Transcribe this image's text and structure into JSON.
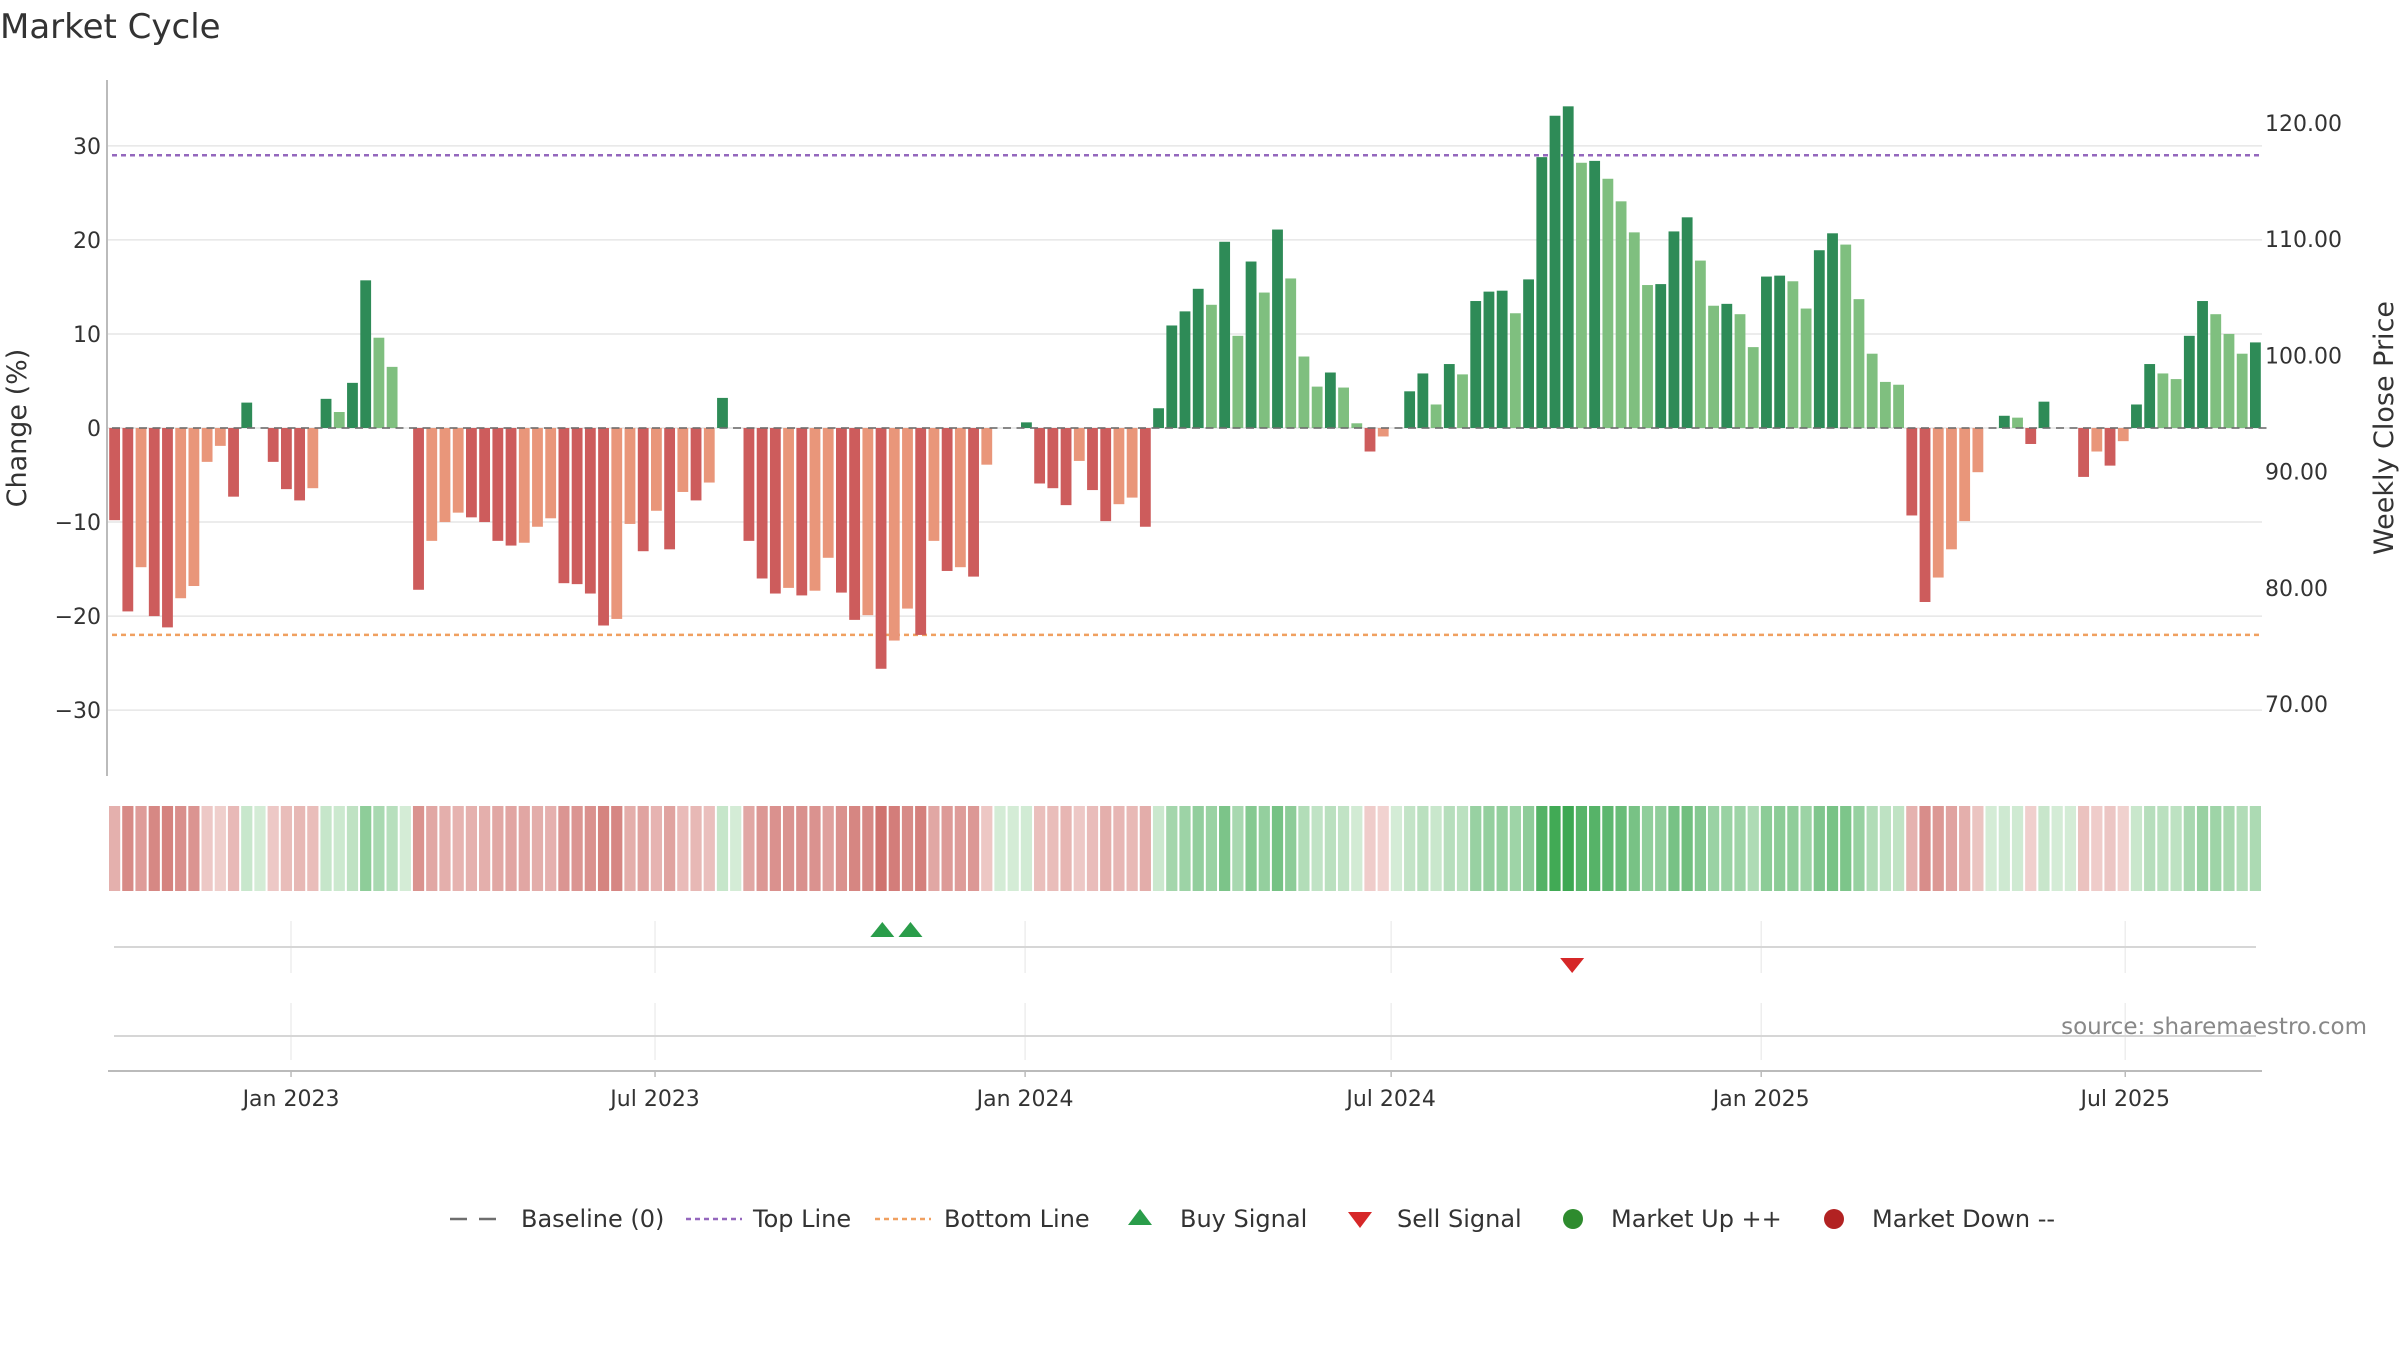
{
  "chart_data": {
    "type": "bar",
    "title": "Market Cycle",
    "ylabel": "Change (%)",
    "y2label": "Weekly Close Price",
    "ylim": [
      -37,
      37
    ],
    "yticks": [
      30,
      20,
      10,
      0,
      -10,
      -20,
      -30
    ],
    "ytick_labels": [
      "30",
      "20",
      "10",
      "0",
      "−10",
      "−20",
      "−30"
    ],
    "y2lim": [
      63.8,
      123.7
    ],
    "y2ticks": [
      120,
      110,
      100,
      90,
      80,
      70
    ],
    "y2tick_labels": [
      "120.00",
      "110.00",
      "100.00",
      "90.00",
      "80.00",
      "70.00"
    ],
    "x_start": "2022-10-02",
    "x_end": "2025-09-07",
    "xticks": [
      "2023-01-01",
      "2023-07-01",
      "2024-01-01",
      "2024-07-01",
      "2025-01-01",
      "2025-07-01"
    ],
    "xtick_labels": [
      "Jan 2023",
      "Jul 2023",
      "Jan 2024",
      "Jul 2024",
      "Jan 2025",
      "Jul 2025"
    ],
    "top_line": 29,
    "bottom_line": -22,
    "weeks_start": "2022-10-02",
    "values": [
      -9.8,
      -19.5,
      -14.8,
      -20,
      -21.2,
      -18.1,
      -16.8,
      -3.6,
      -1.9,
      -7.3,
      2.7,
      0,
      -3.6,
      -6.5,
      -7.7,
      -6.4,
      3.1,
      1.7,
      4.8,
      15.7,
      9.6,
      6.5,
      0,
      -17.2,
      -12,
      -10,
      -9,
      -9.5,
      -10,
      -12,
      -12.5,
      -12.2,
      -10.5,
      -9.6,
      -16.5,
      -16.6,
      -17.6,
      -21,
      -20.3,
      -10.2,
      -13.1,
      -8.8,
      -12.9,
      -6.8,
      -7.7,
      -5.8,
      3.2,
      0,
      -12,
      -16,
      -17.6,
      -17,
      -17.8,
      -17.3,
      -13.8,
      -17.5,
      -20.4,
      -19.9,
      -25.6,
      -22.6,
      -19.2,
      -22,
      -12,
      -15.2,
      -14.8,
      -15.8,
      -3.9,
      0,
      0,
      0.6,
      -5.9,
      -6.4,
      -8.2,
      -3.5,
      -6.6,
      -9.9,
      -8.1,
      -7.4,
      -10.5,
      2.1,
      10.9,
      12.4,
      14.8,
      13.1,
      19.8,
      9.8,
      17.7,
      14.4,
      21.1,
      15.9,
      7.6,
      4.4,
      5.9,
      4.3,
      0.5,
      -2.5,
      -0.9,
      0,
      3.9,
      5.8,
      2.5,
      6.8,
      5.7,
      13.5,
      14.5,
      14.6,
      12.2,
      15.8,
      28.8,
      33.2,
      34.2,
      28.2,
      28.4,
      26.5,
      24.1,
      20.8,
      15.2,
      15.3,
      20.9,
      22.4,
      17.8,
      13,
      13.2,
      12.1,
      8.6,
      16.1,
      16.2,
      15.6,
      12.7,
      18.9,
      20.7,
      19.5,
      13.7,
      7.9,
      4.9,
      4.6,
      -9.3,
      -18.5,
      -15.9,
      -12.9,
      -9.9,
      -4.7,
      0,
      1.3,
      1.1,
      -1.7,
      2.8,
      0,
      0,
      -5.2,
      -2.5,
      -4,
      -1.4,
      2.5,
      6.8,
      5.8,
      5.2,
      9.8,
      13.5,
      12.1,
      10,
      7.9,
      9.1
    ],
    "buy_signals": [
      "2023-10-22",
      "2023-11-05"
    ],
    "sell_signals": [
      "2024-09-29"
    ],
    "legend": [
      {
        "label": "Baseline (0)",
        "marker": "dash",
        "color": "#6e6e6e"
      },
      {
        "label": "Top Line",
        "marker": "dotted",
        "color": "#9467bd"
      },
      {
        "label": "Bottom Line",
        "marker": "dotted",
        "color": "#f0a060"
      },
      {
        "label": "Buy Signal",
        "marker": "triangle-up",
        "color": "#2a9d4a"
      },
      {
        "label": "Sell Signal",
        "marker": "triangle-down",
        "color": "#d62728"
      },
      {
        "label": "Market Up ++",
        "marker": "circle",
        "color": "#2e8b2e"
      },
      {
        "label": "Market Down --",
        "marker": "circle",
        "color": "#b22222"
      }
    ],
    "legend_position": "bottom-center",
    "grid": true
  },
  "colors": {
    "pos_dark": "#2e8b57",
    "pos_light": "#7fbf7f",
    "neg_dark": "#cd5c5c",
    "neg_light": "#e9967a",
    "top_line": "#9467bd",
    "bottom_line": "#f0a060"
  },
  "source": "source: sharemaestro.com"
}
